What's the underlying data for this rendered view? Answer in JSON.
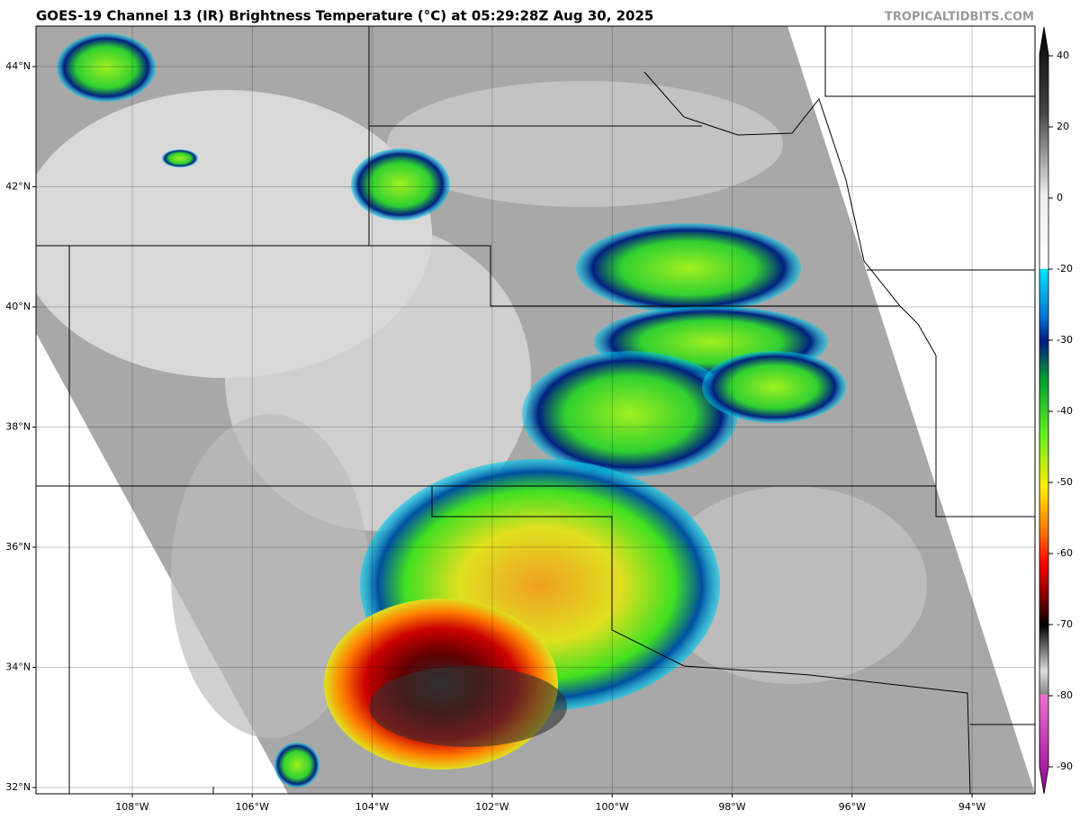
{
  "header": {
    "title": "GOES-19 Channel 13 (IR) Brightness Temperature (°C) at 05:29:28Z Aug 30, 2025",
    "watermark": "TROPICALTIDBITS.COM"
  },
  "map": {
    "lat_labels": [
      "44°N",
      "42°N",
      "40°N",
      "38°N",
      "36°N",
      "34°N",
      "32°N"
    ],
    "lon_labels": [
      "108°W",
      "106°W",
      "104°W",
      "102°W",
      "100°W",
      "98°W",
      "96°W",
      "94°W"
    ]
  },
  "colorbar": {
    "ticks": [
      40,
      20,
      0,
      -20,
      -30,
      -40,
      -50,
      -60,
      -70,
      -80,
      -90
    ]
  }
}
